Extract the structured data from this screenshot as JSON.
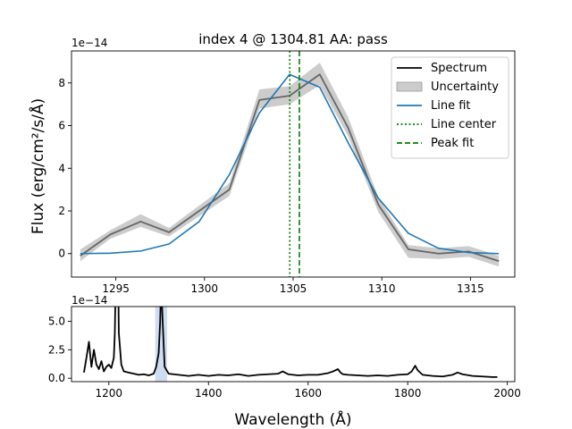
{
  "chart_data": [
    {
      "type": "line",
      "title": "index 4 @ 1304.81 AA: pass",
      "ylabel": "Flux (erg/cm²/s/Å)",
      "offset_text": "1e−14",
      "xlim": [
        1292.5,
        1317.5
      ],
      "ylim": [
        -1.1,
        9.5
      ],
      "x_ticks": [
        1295,
        1300,
        1305,
        1310,
        1315
      ],
      "y_ticks": [
        0,
        2,
        4,
        6,
        8
      ],
      "legend_position": "top-right",
      "x": [
        1293.0,
        1294.7,
        1296.4,
        1298.0,
        1299.7,
        1301.4,
        1303.1,
        1304.8,
        1306.5,
        1308.1,
        1309.8,
        1311.5,
        1313.2,
        1314.9,
        1316.6
      ],
      "series": [
        {
          "name": "Spectrum",
          "color": "#000000",
          "style": "solid",
          "values": [
            -0.1,
            0.9,
            1.5,
            1.0,
            2.0,
            3.0,
            7.2,
            7.4,
            8.4,
            5.9,
            2.3,
            0.2,
            0.0,
            0.1,
            -0.35
          ]
        },
        {
          "name": "Uncertainty",
          "color": "#aaaaaa",
          "style": "band",
          "lower": [
            -0.35,
            0.7,
            1.25,
            0.8,
            1.75,
            2.7,
            6.8,
            7.0,
            7.9,
            5.5,
            1.95,
            -0.2,
            -0.25,
            -0.15,
            -0.6
          ],
          "upper": [
            0.2,
            1.1,
            1.85,
            1.2,
            2.25,
            3.3,
            7.7,
            7.85,
            8.95,
            6.4,
            2.65,
            0.4,
            0.25,
            0.35,
            -0.1
          ]
        },
        {
          "name": "Line fit",
          "color": "#1f77b4",
          "style": "solid",
          "values": [
            0.0,
            0.02,
            0.12,
            0.45,
            1.5,
            3.7,
            6.6,
            8.4,
            7.8,
            5.2,
            2.6,
            0.95,
            0.25,
            0.05,
            0.0
          ]
        },
        {
          "name": "Line center",
          "color": "#008000",
          "style": "dotted",
          "vline": 1304.81
        },
        {
          "name": "Peak fit",
          "color": "#008000",
          "style": "dashed",
          "vline": 1305.35
        }
      ]
    },
    {
      "type": "line",
      "xlabel": "Wavelength (Å)",
      "offset_text": "1e−14",
      "xlim": [
        1125,
        2015
      ],
      "ylim": [
        -0.3,
        6.3
      ],
      "x_ticks": [
        1200,
        1400,
        1600,
        1800,
        2000
      ],
      "y_ticks": [
        0.0,
        2.5,
        5.0
      ],
      "highlight_region": [
        1293,
        1317
      ],
      "highlight_color": "#aec7e8",
      "series": [
        {
          "name": "Spectrum",
          "color": "#000000",
          "x": [
            1150,
            1155,
            1160,
            1165,
            1170,
            1175,
            1180,
            1185,
            1190,
            1195,
            1200,
            1205,
            1210,
            1212,
            1215,
            1218,
            1220,
            1225,
            1230,
            1240,
            1250,
            1260,
            1270,
            1280,
            1290,
            1295,
            1300,
            1303,
            1305,
            1308,
            1312,
            1320,
            1340,
            1360,
            1380,
            1400,
            1420,
            1440,
            1460,
            1480,
            1500,
            1520,
            1540,
            1549,
            1560,
            1580,
            1600,
            1620,
            1640,
            1650,
            1660,
            1665,
            1670,
            1680,
            1700,
            1720,
            1740,
            1760,
            1780,
            1800,
            1808,
            1815,
            1820,
            1830,
            1850,
            1870,
            1890,
            1900,
            1910,
            1930,
            1950,
            1970,
            1980
          ],
          "values": [
            0.5,
            1.8,
            3.2,
            1.0,
            2.5,
            1.2,
            0.8,
            1.5,
            0.6,
            1.0,
            1.2,
            0.9,
            1.8,
            4.0,
            12.0,
            12.0,
            4.0,
            1.2,
            0.6,
            0.5,
            0.4,
            0.3,
            0.35,
            0.25,
            0.4,
            1.0,
            2.2,
            5.0,
            8.4,
            5.0,
            1.0,
            0.4,
            0.3,
            0.2,
            0.3,
            0.2,
            0.3,
            0.25,
            0.35,
            0.2,
            0.3,
            0.35,
            0.4,
            0.6,
            0.35,
            0.25,
            0.3,
            0.3,
            0.45,
            0.6,
            0.8,
            0.5,
            0.35,
            0.3,
            0.25,
            0.2,
            0.25,
            0.2,
            0.3,
            0.35,
            0.6,
            1.1,
            0.7,
            0.3,
            0.2,
            0.15,
            0.3,
            0.5,
            0.35,
            0.2,
            0.15,
            0.1,
            0.1
          ]
        }
      ]
    }
  ]
}
